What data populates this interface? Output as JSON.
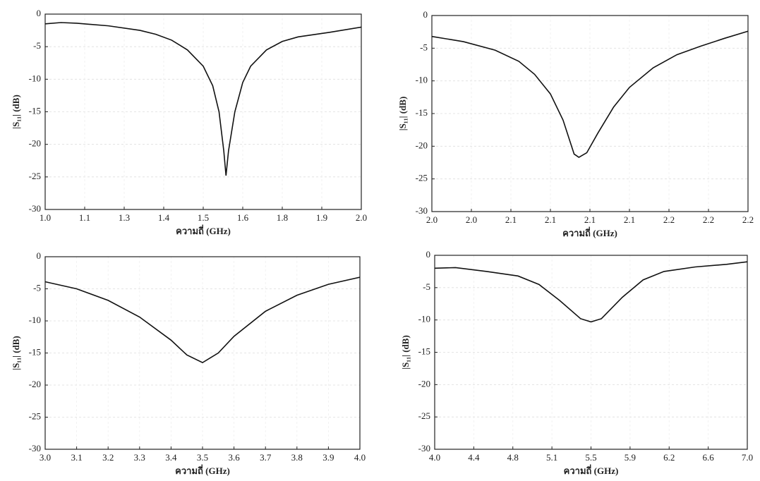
{
  "chart_data": [
    {
      "type": "line",
      "x_label": "ความถี่ (GHz)",
      "y_label": "|S₁₁| (dB)",
      "color": "#111111",
      "grid": true,
      "xlim": [
        1.0,
        2.0
      ],
      "xticks": [
        {
          "value": 1.0,
          "label": "1.0"
        },
        {
          "value": 1.125,
          "label": "1.1"
        },
        {
          "value": 1.25,
          "label": "1.3"
        },
        {
          "value": 1.375,
          "label": "1.4"
        },
        {
          "value": 1.5,
          "label": "1.5"
        },
        {
          "value": 1.625,
          "label": "1.6"
        },
        {
          "value": 1.75,
          "label": "1.8"
        },
        {
          "value": 1.875,
          "label": "1.9"
        },
        {
          "value": 2.0,
          "label": "2.0"
        }
      ],
      "ylim": [
        -30,
        0
      ],
      "yticks": [
        0,
        -5,
        -10,
        -15,
        -20,
        -25,
        -30
      ],
      "x": [
        1.0,
        1.05,
        1.1,
        1.2,
        1.3,
        1.35,
        1.4,
        1.45,
        1.5,
        1.53,
        1.55,
        1.565,
        1.572,
        1.58,
        1.6,
        1.625,
        1.65,
        1.7,
        1.75,
        1.8,
        1.9,
        2.0
      ],
      "values": [
        -1.5,
        -1.3,
        -1.4,
        -1.8,
        -2.5,
        -3.1,
        -4,
        -5.5,
        -8,
        -11,
        -15,
        -21,
        -24.8,
        -21,
        -15,
        -10.5,
        -8,
        -5.5,
        -4.2,
        -3.5,
        -2.8,
        -2.0
      ]
    },
    {
      "type": "line",
      "x_label": "ความถี่ (GHz)",
      "y_label": "|S₁₁| (dB)",
      "color": "#111111",
      "grid": true,
      "xlim": [
        2.0,
        2.2
      ],
      "xticks": [
        {
          "value": 2.0,
          "label": "2.0"
        },
        {
          "value": 2.025,
          "label": "2.0"
        },
        {
          "value": 2.05,
          "label": "2.1"
        },
        {
          "value": 2.075,
          "label": "2.1"
        },
        {
          "value": 2.1,
          "label": "2.1"
        },
        {
          "value": 2.125,
          "label": "2.1"
        },
        {
          "value": 2.15,
          "label": "2.2"
        },
        {
          "value": 2.175,
          "label": "2.2"
        },
        {
          "value": 2.2,
          "label": "2.2"
        }
      ],
      "ylim": [
        -30,
        0
      ],
      "yticks": [
        0,
        -5,
        -10,
        -15,
        -20,
        -25,
        -30
      ],
      "x": [
        2.0,
        2.02,
        2.04,
        2.055,
        2.065,
        2.075,
        2.083,
        2.09,
        2.093,
        2.098,
        2.105,
        2.115,
        2.125,
        2.14,
        2.155,
        2.17,
        2.185,
        2.2
      ],
      "values": [
        -3.2,
        -4,
        -5.3,
        -7,
        -9,
        -12,
        -16,
        -21.2,
        -21.7,
        -21,
        -18,
        -14,
        -11,
        -8,
        -6,
        -4.7,
        -3.5,
        -2.4
      ]
    },
    {
      "type": "line",
      "x_label": "ความถี่ (GHz)",
      "y_label": "|S₁₁| (dB)",
      "color": "#111111",
      "grid": true,
      "xlim": [
        3.0,
        4.0
      ],
      "xticks": [
        {
          "value": 3.0,
          "label": "3.0"
        },
        3.1,
        3.2,
        3.3,
        3.4,
        3.5,
        3.6,
        3.7,
        3.8,
        3.9,
        {
          "value": 4.0,
          "label": "4.0"
        }
      ],
      "ylim": [
        -30,
        0
      ],
      "yticks": [
        0,
        -5,
        -10,
        -15,
        -20,
        -25,
        -30
      ],
      "x": [
        3.0,
        3.1,
        3.2,
        3.3,
        3.4,
        3.45,
        3.5,
        3.55,
        3.6,
        3.7,
        3.8,
        3.9,
        4.0
      ],
      "values": [
        -3.9,
        -5,
        -6.8,
        -9.4,
        -13,
        -15.3,
        -16.5,
        -15,
        -12.4,
        -8.5,
        -6,
        -4.3,
        -3.2
      ]
    },
    {
      "type": "line",
      "x_label": "ความถี่ (GHz)",
      "y_label": "|S₁₁| (dB)",
      "color": "#111111",
      "grid": true,
      "xlim": [
        4.0,
        7.0
      ],
      "xticks": [
        {
          "value": 4.0,
          "label": "4.0"
        },
        {
          "value": 4.375,
          "label": "4.4"
        },
        {
          "value": 4.75,
          "label": "4.8"
        },
        {
          "value": 5.125,
          "label": "5.1"
        },
        5.5,
        {
          "value": 5.875,
          "label": "5.9"
        },
        {
          "value": 6.25,
          "label": "6.2"
        },
        {
          "value": 6.625,
          "label": "6.6"
        },
        {
          "value": 7.0,
          "label": "7.0"
        }
      ],
      "ylim": [
        -30,
        0
      ],
      "yticks": [
        0,
        -5,
        -10,
        -15,
        -20,
        -25,
        -30
      ],
      "x": [
        4.0,
        4.2,
        4.5,
        4.8,
        5.0,
        5.2,
        5.4,
        5.5,
        5.6,
        5.8,
        6.0,
        6.2,
        6.5,
        6.8,
        7.0
      ],
      "values": [
        -2,
        -1.9,
        -2.5,
        -3.2,
        -4.5,
        -7,
        -9.8,
        -10.3,
        -9.8,
        -6.5,
        -3.8,
        -2.5,
        -1.8,
        -1.4,
        -1
      ]
    }
  ]
}
